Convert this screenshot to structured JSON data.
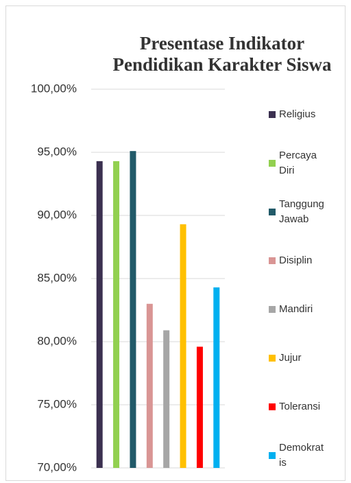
{
  "chart_data": {
    "type": "bar",
    "title": "Presentase Indikator Pendidikan Karakter Siswa",
    "series": [
      {
        "name": "Religius",
        "color": "#3b3050",
        "values": [
          94.3
        ]
      },
      {
        "name": "Percaya Diri",
        "color": "#92d050",
        "values": [
          94.3
        ]
      },
      {
        "name": "Tanggung Jawab",
        "color": "#215a69",
        "values": [
          95.1
        ]
      },
      {
        "name": "Disiplin",
        "color": "#d99594",
        "values": [
          83.0
        ]
      },
      {
        "name": "Mandiri",
        "color": "#a6a6a6",
        "values": [
          80.9
        ]
      },
      {
        "name": "Jujur",
        "color": "#ffc000",
        "values": [
          89.3
        ]
      },
      {
        "name": "Toleransi",
        "color": "#ff0000",
        "values": [
          79.6
        ]
      },
      {
        "name": "Demokratis",
        "color": "#00b0f0",
        "values": [
          84.3
        ]
      }
    ],
    "ylim": [
      70,
      100
    ],
    "yticks": [
      {
        "value": 70,
        "label": "70,00%"
      },
      {
        "value": 75,
        "label": "75,00%"
      },
      {
        "value": 80,
        "label": "80,00%"
      },
      {
        "value": 85,
        "label": "85,00%"
      },
      {
        "value": 90,
        "label": "90,00%"
      },
      {
        "value": 95,
        "label": "95,00%"
      },
      {
        "value": 100,
        "label": "100,00%"
      }
    ],
    "grid": true,
    "legend": "right"
  }
}
